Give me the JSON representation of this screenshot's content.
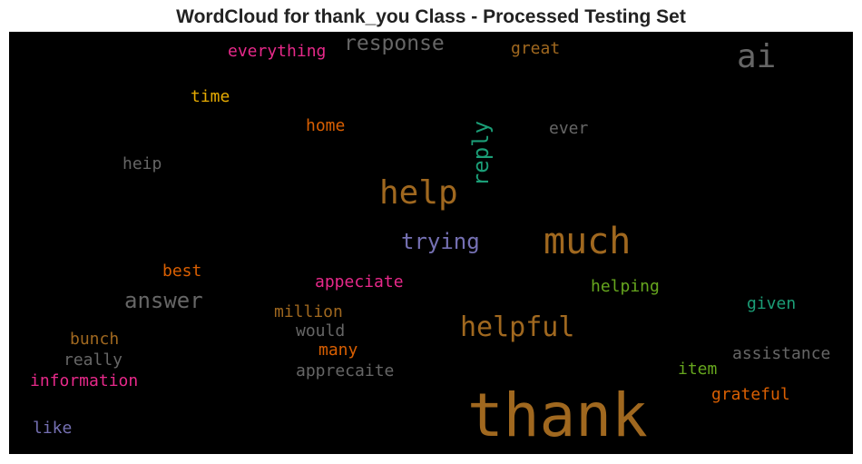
{
  "chart_data": {
    "type": "wordcloud",
    "title": "WordCloud for thank_you Class - Processed Testing Set",
    "background": "#000000",
    "words": [
      {
        "text": "thank",
        "color": "#a0681f",
        "rotation": 0
      },
      {
        "text": "much",
        "color": "#a0681f",
        "rotation": 0
      },
      {
        "text": "help",
        "color": "#a0681f",
        "rotation": 0
      },
      {
        "text": "helpful",
        "color": "#a0681f",
        "rotation": 0
      },
      {
        "text": "ai",
        "color": "#666666",
        "rotation": 0
      },
      {
        "text": "response",
        "color": "#666666",
        "rotation": 0
      },
      {
        "text": "answer",
        "color": "#666666",
        "rotation": 0
      },
      {
        "text": "reply",
        "color": "#1b9e77",
        "rotation": -90
      },
      {
        "text": "trying",
        "color": "#7570b3",
        "rotation": 0
      },
      {
        "text": "everything",
        "color": "#e7298a",
        "rotation": 0
      },
      {
        "text": "great",
        "color": "#a0681f",
        "rotation": 0
      },
      {
        "text": "time",
        "color": "#e6ab02",
        "rotation": 0
      },
      {
        "text": "home",
        "color": "#d95f02",
        "rotation": 0
      },
      {
        "text": "ever",
        "color": "#666666",
        "rotation": 0
      },
      {
        "text": "heip",
        "color": "#666666",
        "rotation": 0
      },
      {
        "text": "best",
        "color": "#d95f02",
        "rotation": 0
      },
      {
        "text": "appeciate",
        "color": "#e7298a",
        "rotation": 0
      },
      {
        "text": "helping",
        "color": "#66a61e",
        "rotation": 0
      },
      {
        "text": "given",
        "color": "#1b9e77",
        "rotation": 0
      },
      {
        "text": "million",
        "color": "#a0681f",
        "rotation": 0
      },
      {
        "text": "would",
        "color": "#666666",
        "rotation": 0
      },
      {
        "text": "bunch",
        "color": "#a0681f",
        "rotation": 0
      },
      {
        "text": "many",
        "color": "#d95f02",
        "rotation": 0
      },
      {
        "text": "really",
        "color": "#666666",
        "rotation": 0
      },
      {
        "text": "assistance",
        "color": "#666666",
        "rotation": 0
      },
      {
        "text": "apprecaite",
        "color": "#666666",
        "rotation": 0
      },
      {
        "text": "information",
        "color": "#e7298a",
        "rotation": 0
      },
      {
        "text": "item",
        "color": "#66a61e",
        "rotation": 0
      },
      {
        "text": "grateful",
        "color": "#d95f02",
        "rotation": 0
      },
      {
        "text": "like",
        "color": "#7570b3",
        "rotation": 0
      }
    ]
  }
}
